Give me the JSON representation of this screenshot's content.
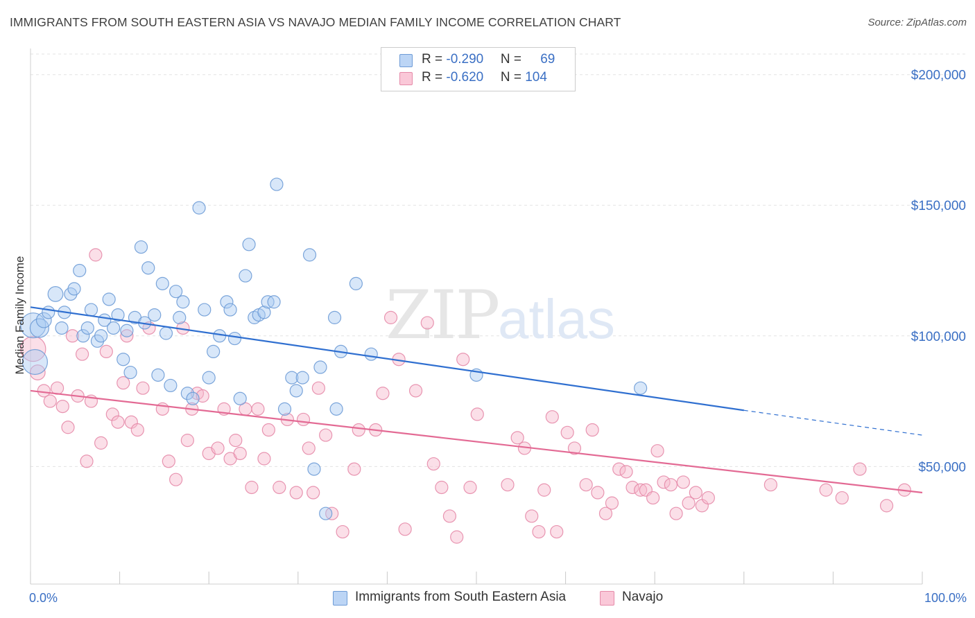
{
  "title": "IMMIGRANTS FROM SOUTH EASTERN ASIA VS NAVAJO MEDIAN FAMILY INCOME CORRELATION CHART",
  "source": "Source: ZipAtlas.com",
  "watermark": {
    "zip": "ZIP",
    "atlas": "atlas"
  },
  "legend": {
    "rows": [
      {
        "r_label": "R = ",
        "r_value": "-0.290",
        "n_label": "N = ",
        "n_value": "69",
        "color": "#a9c9f2"
      },
      {
        "r_label": "R = ",
        "r_value": "-0.620",
        "n_label": "N = ",
        "n_value": "104",
        "color": "#f7b8cc"
      }
    ]
  },
  "colors": {
    "blue_fill": "#a9c9f2",
    "blue_stroke": "#6d9bd6",
    "blue_line": "#2f6fd0",
    "pink_fill": "#f7b8cc",
    "pink_stroke": "#e58aa8",
    "pink_line": "#e36a94",
    "axis_text": "#3a6fc4"
  },
  "chart_data": {
    "type": "scatter",
    "title": "IMMIGRANTS FROM SOUTH EASTERN ASIA VS NAVAJO MEDIAN FAMILY INCOME CORRELATION CHART",
    "xlabel": "",
    "ylabel": "Median Family Income",
    "xlim": [
      0,
      100
    ],
    "ylim": [
      5000,
      210000
    ],
    "x_tick_labels": [
      "0.0%",
      "100.0%"
    ],
    "y_ticks": [
      50000,
      100000,
      150000,
      200000
    ],
    "y_tick_labels": [
      "$50,000",
      "$100,000",
      "$150,000",
      "$200,000"
    ],
    "grid": true,
    "legend_position": "bottom",
    "series": [
      {
        "name": "Immigrants from South Eastern Asia",
        "r": -0.29,
        "n": 69,
        "trend": {
          "x0": 0,
          "y0": 111000,
          "x_solid_end": 80,
          "y_solid_end": 71500,
          "x1": 100,
          "y1": 62000
        },
        "points": [
          [
            0.3,
            104000,
            2
          ],
          [
            1.0,
            103000,
            1.5
          ],
          [
            1.5,
            106000,
            1.2
          ],
          [
            2.0,
            109000,
            1
          ],
          [
            2.8,
            116000,
            1.2
          ],
          [
            3.5,
            103000,
            1
          ],
          [
            3.8,
            109000,
            1
          ],
          [
            4.5,
            116000,
            1
          ],
          [
            4.9,
            118000,
            1
          ],
          [
            5.5,
            125000,
            1
          ],
          [
            5.9,
            100000,
            1
          ],
          [
            6.4,
            103000,
            1
          ],
          [
            6.8,
            110000,
            1
          ],
          [
            7.5,
            98000,
            1
          ],
          [
            7.9,
            100000,
            1
          ],
          [
            8.3,
            106000,
            1
          ],
          [
            8.8,
            114000,
            1
          ],
          [
            9.3,
            103000,
            1
          ],
          [
            9.8,
            108000,
            1
          ],
          [
            10.4,
            91000,
            1
          ],
          [
            10.8,
            102000,
            1
          ],
          [
            11.2,
            86000,
            1
          ],
          [
            11.7,
            107000,
            1
          ],
          [
            12.4,
            134000,
            1
          ],
          [
            12.8,
            105000,
            1
          ],
          [
            13.2,
            126000,
            1
          ],
          [
            13.9,
            108000,
            1
          ],
          [
            14.3,
            85000,
            1
          ],
          [
            14.8,
            120000,
            1
          ],
          [
            15.2,
            101000,
            1
          ],
          [
            15.7,
            81000,
            1
          ],
          [
            16.3,
            117000,
            1
          ],
          [
            16.7,
            107000,
            1
          ],
          [
            17.1,
            113000,
            1
          ],
          [
            17.6,
            78000,
            1
          ],
          [
            18.2,
            76000,
            1
          ],
          [
            18.9,
            149000,
            1
          ],
          [
            19.5,
            110000,
            1
          ],
          [
            20.0,
            84000,
            1
          ],
          [
            20.5,
            94000,
            1
          ],
          [
            21.2,
            100000,
            1
          ],
          [
            22.0,
            113000,
            1
          ],
          [
            22.4,
            110000,
            1
          ],
          [
            22.9,
            99000,
            1
          ],
          [
            23.5,
            76000,
            1
          ],
          [
            24.1,
            123000,
            1
          ],
          [
            24.5,
            135000,
            1
          ],
          [
            25.1,
            107000,
            1
          ],
          [
            25.6,
            108000,
            1
          ],
          [
            26.2,
            109000,
            1
          ],
          [
            26.6,
            113000,
            1
          ],
          [
            27.3,
            113000,
            1
          ],
          [
            27.6,
            158000,
            1
          ],
          [
            28.5,
            72000,
            1
          ],
          [
            29.3,
            84000,
            1
          ],
          [
            29.8,
            79000,
            1
          ],
          [
            30.5,
            84000,
            1
          ],
          [
            31.3,
            131000,
            1
          ],
          [
            31.8,
            49000,
            1
          ],
          [
            32.5,
            88000,
            1
          ],
          [
            33.1,
            32000,
            1
          ],
          [
            34.1,
            107000,
            1
          ],
          [
            34.3,
            72000,
            1
          ],
          [
            34.8,
            94000,
            1
          ],
          [
            36.5,
            120000,
            1
          ],
          [
            38.2,
            93000,
            1
          ],
          [
            50.0,
            85000,
            1
          ],
          [
            68.4,
            80000,
            1
          ],
          [
            0.5,
            90000,
            2
          ]
        ]
      },
      {
        "name": "Navajo",
        "r": -0.62,
        "n": 104,
        "trend": {
          "x0": 0,
          "y0": 79000,
          "x1": 100,
          "y1": 40000
        },
        "points": [
          [
            0.3,
            95000,
            2
          ],
          [
            0.8,
            86000,
            1.2
          ],
          [
            1.5,
            79000,
            1
          ],
          [
            2.2,
            75000,
            1
          ],
          [
            3.0,
            80000,
            1
          ],
          [
            3.6,
            73000,
            1
          ],
          [
            4.2,
            65000,
            1
          ],
          [
            4.7,
            100000,
            1
          ],
          [
            5.3,
            77000,
            1
          ],
          [
            5.8,
            93000,
            1
          ],
          [
            6.3,
            52000,
            1
          ],
          [
            6.8,
            75000,
            1
          ],
          [
            7.3,
            131000,
            1
          ],
          [
            7.9,
            59000,
            1
          ],
          [
            8.5,
            94000,
            1
          ],
          [
            9.2,
            70000,
            1
          ],
          [
            9.8,
            67000,
            1
          ],
          [
            10.4,
            82000,
            1
          ],
          [
            10.8,
            100000,
            1
          ],
          [
            11.3,
            67000,
            1
          ],
          [
            12.0,
            64000,
            1
          ],
          [
            12.6,
            80000,
            1
          ],
          [
            13.3,
            103000,
            1
          ],
          [
            14.8,
            72000,
            1
          ],
          [
            15.5,
            52000,
            1
          ],
          [
            16.3,
            45000,
            1
          ],
          [
            17.1,
            103000,
            1
          ],
          [
            17.6,
            60000,
            1
          ],
          [
            18.1,
            72000,
            1
          ],
          [
            18.7,
            78000,
            1
          ],
          [
            19.3,
            77000,
            1
          ],
          [
            20.0,
            55000,
            1
          ],
          [
            21.0,
            57000,
            1
          ],
          [
            21.7,
            72000,
            1
          ],
          [
            22.4,
            53000,
            1
          ],
          [
            23.0,
            60000,
            1
          ],
          [
            23.5,
            55000,
            1
          ],
          [
            24.1,
            72000,
            1
          ],
          [
            24.8,
            42000,
            1
          ],
          [
            25.5,
            72000,
            1
          ],
          [
            26.2,
            53000,
            1
          ],
          [
            26.7,
            64000,
            1
          ],
          [
            27.9,
            42000,
            1
          ],
          [
            28.8,
            68000,
            1
          ],
          [
            29.8,
            40000,
            1
          ],
          [
            30.6,
            68000,
            1
          ],
          [
            31.2,
            57000,
            1
          ],
          [
            31.7,
            40000,
            1
          ],
          [
            32.3,
            80000,
            1
          ],
          [
            33.1,
            62000,
            1
          ],
          [
            33.8,
            32000,
            1
          ],
          [
            35.0,
            25000,
            1
          ],
          [
            36.3,
            49000,
            1
          ],
          [
            36.8,
            64000,
            1
          ],
          [
            38.7,
            64000,
            1
          ],
          [
            39.5,
            78000,
            1
          ],
          [
            40.4,
            107000,
            1
          ],
          [
            41.3,
            91000,
            1
          ],
          [
            42.0,
            26000,
            1
          ],
          [
            43.2,
            79000,
            1
          ],
          [
            44.5,
            105000,
            1
          ],
          [
            45.2,
            51000,
            1
          ],
          [
            46.1,
            42000,
            1
          ],
          [
            47.0,
            31000,
            1
          ],
          [
            47.8,
            23000,
            1
          ],
          [
            48.5,
            91000,
            1
          ],
          [
            49.3,
            42000,
            1
          ],
          [
            50.1,
            70000,
            1
          ],
          [
            53.5,
            43000,
            1
          ],
          [
            54.6,
            61000,
            1
          ],
          [
            55.4,
            57000,
            1
          ],
          [
            56.2,
            31000,
            1
          ],
          [
            57.0,
            25000,
            1
          ],
          [
            57.6,
            41000,
            1
          ],
          [
            58.5,
            69000,
            1
          ],
          [
            59.0,
            25000,
            1
          ],
          [
            60.2,
            63000,
            1
          ],
          [
            61.0,
            57000,
            1
          ],
          [
            62.3,
            43000,
            1
          ],
          [
            63.0,
            64000,
            1
          ],
          [
            63.6,
            40000,
            1
          ],
          [
            64.5,
            32000,
            1
          ],
          [
            65.2,
            36000,
            1
          ],
          [
            66.0,
            49000,
            1
          ],
          [
            66.8,
            48000,
            1
          ],
          [
            67.5,
            42000,
            1
          ],
          [
            68.4,
            41000,
            1
          ],
          [
            69.0,
            41000,
            1
          ],
          [
            69.8,
            38000,
            1
          ],
          [
            70.3,
            56000,
            1
          ],
          [
            71.0,
            44000,
            1
          ],
          [
            71.8,
            43000,
            1
          ],
          [
            72.4,
            32000,
            1
          ],
          [
            73.2,
            44000,
            1
          ],
          [
            73.8,
            36000,
            1
          ],
          [
            74.6,
            40000,
            1
          ],
          [
            75.3,
            35000,
            1
          ],
          [
            76.0,
            38000,
            1
          ],
          [
            83.0,
            43000,
            1
          ],
          [
            89.2,
            41000,
            1
          ],
          [
            91.0,
            38000,
            1
          ],
          [
            93.0,
            49000,
            1
          ],
          [
            96.0,
            35000,
            1
          ],
          [
            98.0,
            41000,
            1
          ]
        ]
      }
    ]
  }
}
